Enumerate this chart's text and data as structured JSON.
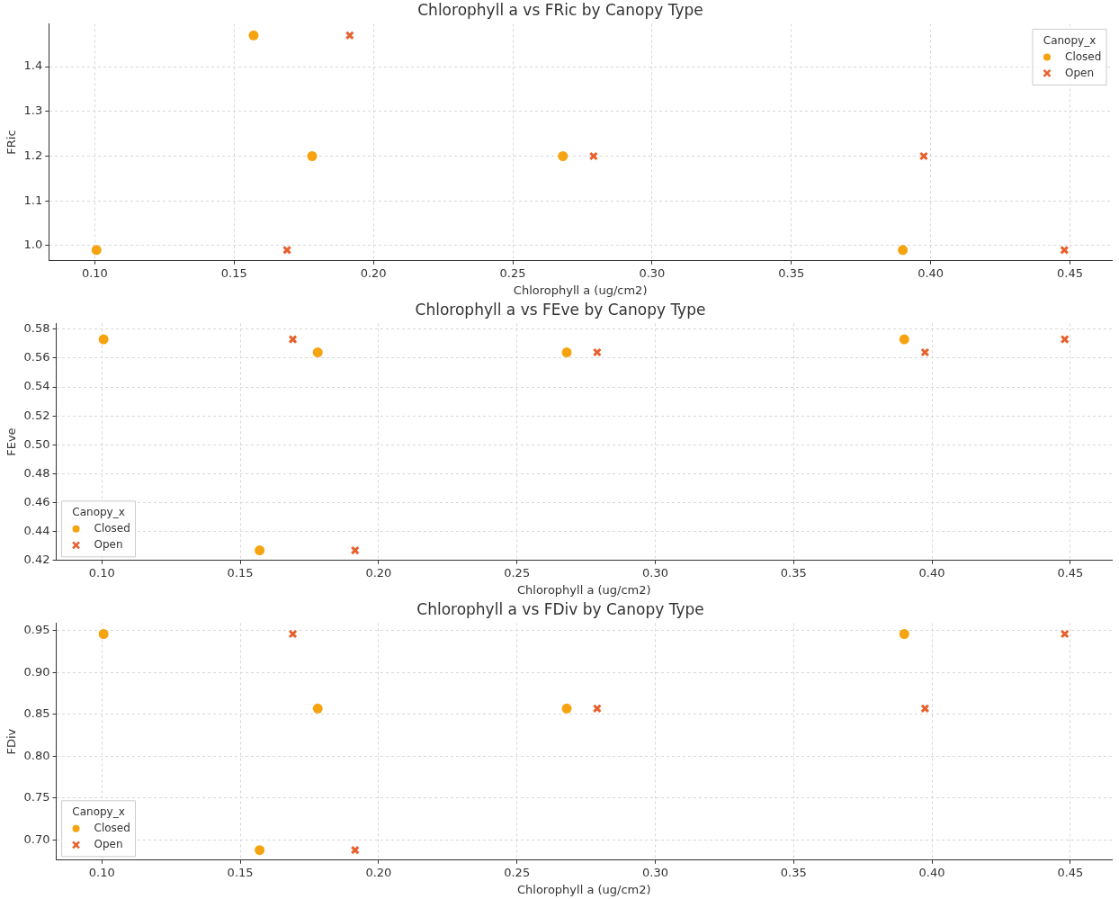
{
  "chart_data": [
    {
      "type": "scatter",
      "title": "Chlorophyll a vs FRic by Canopy Type",
      "xlabel": "Chlorophyll a (ug/cm2)",
      "ylabel": "FRic",
      "legend_title": "Canopy_x",
      "legend": "top right",
      "grid": true,
      "xlim": [
        0.0835,
        0.465
      ],
      "xticks": [
        {
          "value": 0.1,
          "label": "0.10"
        },
        {
          "value": 0.15,
          "label": "0.15"
        },
        {
          "value": 0.2,
          "label": "0.20"
        },
        {
          "value": 0.25,
          "label": "0.25"
        },
        {
          "value": 0.3,
          "label": "0.30"
        },
        {
          "value": 0.35,
          "label": "0.35"
        },
        {
          "value": 0.4,
          "label": "0.40"
        },
        {
          "value": 0.45,
          "label": "0.45"
        }
      ],
      "ylim": [
        0.966,
        1.496
      ],
      "yticks": [
        {
          "value": 1.0,
          "label": "1.0"
        },
        {
          "value": 1.1,
          "label": "1.1"
        },
        {
          "value": 1.2,
          "label": "1.2"
        },
        {
          "value": 1.3,
          "label": "1.3"
        },
        {
          "value": 1.4,
          "label": "1.4"
        }
      ],
      "series": [
        {
          "name": "Closed",
          "color": "#f5a30f",
          "marker": "circle",
          "x": [
            0.157,
            0.178,
            0.268,
            0.1006,
            0.39
          ],
          "values": [
            1.47,
            1.2,
            1.2,
            0.99,
            0.99
          ]
        },
        {
          "name": "Open",
          "color": "#e8602c",
          "marker": "cross",
          "x": [
            0.1915,
            0.169,
            0.279,
            0.3975,
            0.448
          ],
          "values": [
            1.47,
            0.99,
            1.2,
            1.2,
            0.99
          ]
        }
      ]
    },
    {
      "type": "scatter",
      "title": "Chlorophyll a vs FEve by Canopy Type",
      "xlabel": "Chlorophyll a (ug/cm2)",
      "ylabel": "FEve",
      "legend_title": "Canopy_x",
      "legend": "bottom left",
      "grid": true,
      "xlim": [
        0.0835,
        0.465
      ],
      "xticks": [
        {
          "value": 0.1,
          "label": "0.10"
        },
        {
          "value": 0.15,
          "label": "0.15"
        },
        {
          "value": 0.2,
          "label": "0.20"
        },
        {
          "value": 0.25,
          "label": "0.25"
        },
        {
          "value": 0.3,
          "label": "0.30"
        },
        {
          "value": 0.35,
          "label": "0.35"
        },
        {
          "value": 0.4,
          "label": "0.40"
        },
        {
          "value": 0.45,
          "label": "0.45"
        }
      ],
      "ylim": [
        0.42,
        0.584
      ],
      "yticks": [
        {
          "value": 0.42,
          "label": "0.42"
        },
        {
          "value": 0.44,
          "label": "0.44"
        },
        {
          "value": 0.46,
          "label": "0.46"
        },
        {
          "value": 0.48,
          "label": "0.48"
        },
        {
          "value": 0.5,
          "label": "0.50"
        },
        {
          "value": 0.52,
          "label": "0.52"
        },
        {
          "value": 0.54,
          "label": "0.54"
        },
        {
          "value": 0.56,
          "label": "0.56"
        },
        {
          "value": 0.58,
          "label": "0.58"
        }
      ],
      "series": [
        {
          "name": "Closed",
          "color": "#f5a30f",
          "marker": "circle",
          "x": [
            0.157,
            0.178,
            0.268,
            0.1006,
            0.39
          ],
          "values": [
            0.427,
            0.564,
            0.564,
            0.573,
            0.573
          ]
        },
        {
          "name": "Open",
          "color": "#e8602c",
          "marker": "cross",
          "x": [
            0.1915,
            0.169,
            0.279,
            0.3975,
            0.448
          ],
          "values": [
            0.427,
            0.573,
            0.564,
            0.564,
            0.573
          ]
        }
      ]
    },
    {
      "type": "scatter",
      "title": "Chlorophyll a vs FDiv by Canopy Type",
      "xlabel": "Chlorophyll a (ug/cm2)",
      "ylabel": "FDiv",
      "legend_title": "Canopy_x",
      "legend": "bottom left",
      "grid": true,
      "xlim": [
        0.0835,
        0.465
      ],
      "xticks": [
        {
          "value": 0.1,
          "label": "0.10"
        },
        {
          "value": 0.15,
          "label": "0.15"
        },
        {
          "value": 0.2,
          "label": "0.20"
        },
        {
          "value": 0.25,
          "label": "0.25"
        },
        {
          "value": 0.3,
          "label": "0.30"
        },
        {
          "value": 0.35,
          "label": "0.35"
        },
        {
          "value": 0.4,
          "label": "0.40"
        },
        {
          "value": 0.45,
          "label": "0.45"
        }
      ],
      "ylim": [
        0.676,
        0.959
      ],
      "yticks": [
        {
          "value": 0.7,
          "label": "0.70"
        },
        {
          "value": 0.75,
          "label": "0.75"
        },
        {
          "value": 0.8,
          "label": "0.80"
        },
        {
          "value": 0.85,
          "label": "0.85"
        },
        {
          "value": 0.9,
          "label": "0.90"
        },
        {
          "value": 0.95,
          "label": "0.95"
        }
      ],
      "series": [
        {
          "name": "Closed",
          "color": "#f5a30f",
          "marker": "circle",
          "x": [
            0.157,
            0.178,
            0.268,
            0.1006,
            0.39
          ],
          "values": [
            0.688,
            0.857,
            0.857,
            0.946,
            0.946
          ]
        },
        {
          "name": "Open",
          "color": "#e8602c",
          "marker": "cross",
          "x": [
            0.1915,
            0.169,
            0.279,
            0.3975,
            0.448
          ],
          "values": [
            0.688,
            0.946,
            0.857,
            0.857,
            0.946
          ]
        }
      ]
    }
  ]
}
